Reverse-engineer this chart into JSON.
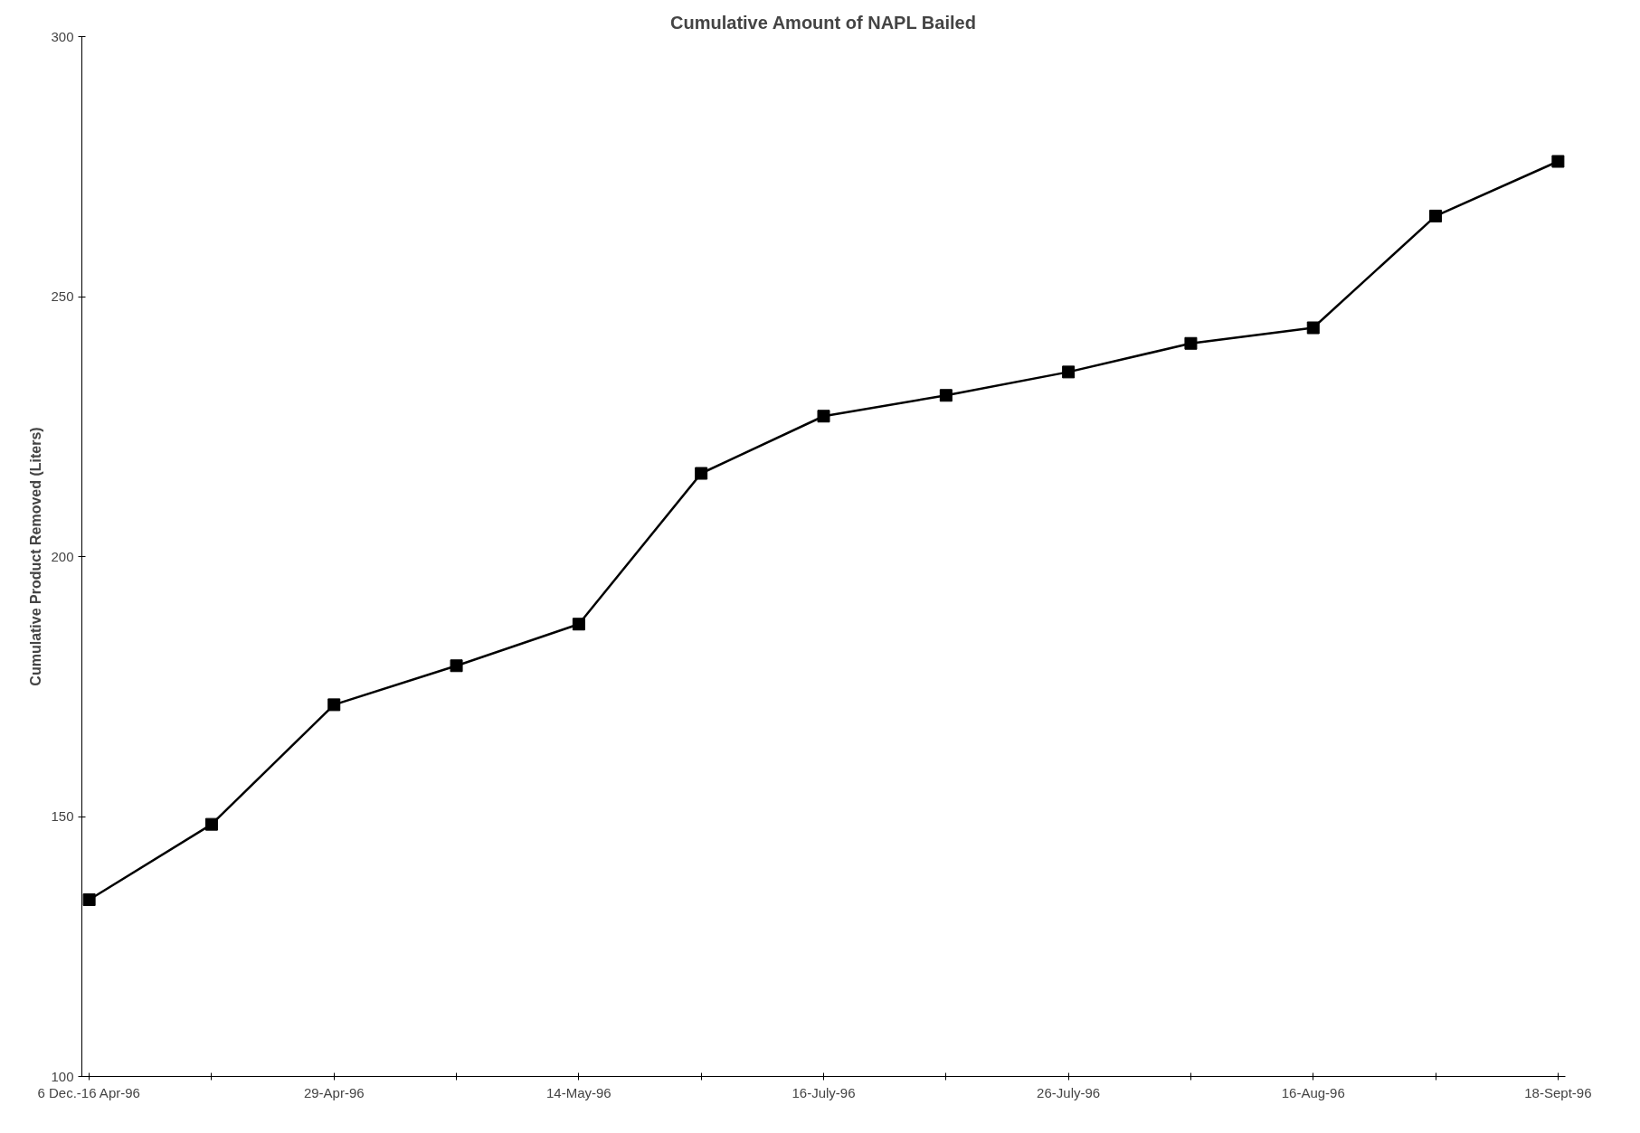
{
  "chart_data": {
    "type": "line",
    "title": "Cumulative Amount of NAPL Bailed",
    "ylabel": "Cumulative Product Removed (Liters)",
    "categories": [
      "6 Dec.-16 Apr-96",
      null,
      "29-Apr-96",
      null,
      "14-May-96",
      null,
      "16-July-96",
      null,
      "26-July-96",
      null,
      "16-Aug-96",
      null,
      "18-Sept-96"
    ],
    "series": [
      {
        "color": "#000000",
        "values": [
          134,
          148.5,
          171.5,
          179,
          187,
          216,
          227,
          231,
          235.5,
          241,
          244,
          265.5,
          276
        ]
      }
    ],
    "ylim": [
      100,
      300
    ],
    "yticks": [
      100,
      150,
      200,
      250,
      300
    ],
    "grid": false,
    "marker": "square",
    "line_style": "solid"
  }
}
